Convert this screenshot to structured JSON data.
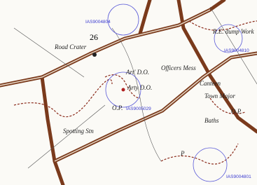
{
  "map": {
    "labels": [
      "IAS9004804",
      "26",
      "Road Crater",
      "R.E. dump Work",
      "IAS9004810",
      "Officers Mess",
      "Art' D.O.",
      "Arty D.O.",
      "O.P.",
      "IAS9005029",
      "Canteen",
      "Town Major",
      "O.P.",
      "Baths",
      "Spotting Stn",
      "IAS9004801",
      "P"
    ]
  }
}
